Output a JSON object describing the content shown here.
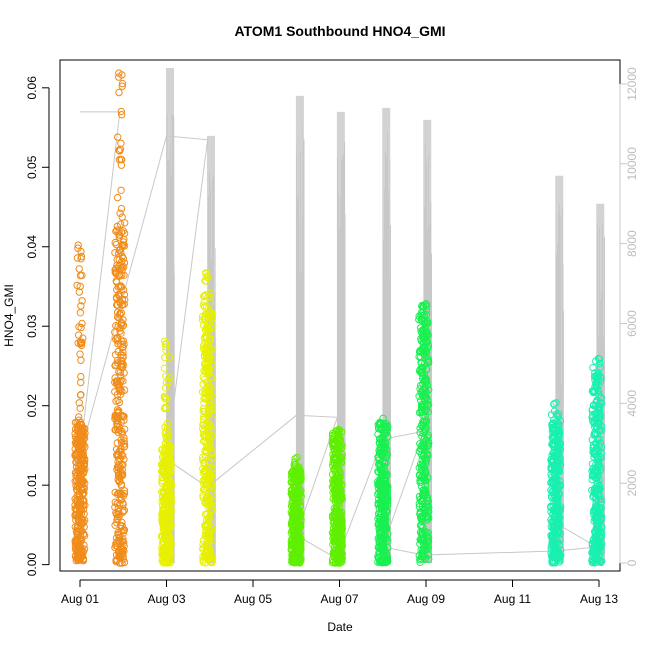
{
  "chart_data": {
    "type": "scatter",
    "title": "ATOM1 Southbound HNO4_GMI",
    "xlabel": "Date",
    "ylabel": "HNO4_GMI",
    "x_tick_labels": [
      "Aug 01",
      "Aug 03",
      "Aug 05",
      "Aug 07",
      "Aug 09",
      "Aug 11",
      "Aug 13"
    ],
    "x_range_days": [
      0.0,
      12.7
    ],
    "ylim": [
      -0.0008,
      0.0635
    ],
    "y_ticks": [
      0.0,
      0.01,
      0.02,
      0.03,
      0.04,
      0.05,
      0.06
    ],
    "y_tick_labels": [
      "0.00",
      "0.01",
      "0.02",
      "0.03",
      "0.04",
      "0.05",
      "0.06"
    ],
    "y2_ticks": [
      0,
      2000,
      4000,
      6000,
      8000,
      10000,
      12000
    ],
    "y2_tick_labels": [
      "0",
      "2000",
      "4000",
      "6000",
      "8000",
      "10000",
      "12000"
    ],
    "y2lim": [
      -200,
      12600
    ],
    "y2_color": "#bdbdbd",
    "grid": false,
    "legend": "none",
    "series": [
      {
        "color": "#f08c1a",
        "clusters": [
          {
            "x": 0.0,
            "ymin": 0.0005,
            "ymax": 0.041,
            "dense": [
              0.0005,
              0.018
            ]
          },
          {
            "x": 0.92,
            "ymin": 0.0002,
            "ymax": 0.063,
            "dense": [
              0.0002,
              0.043
            ]
          }
        ]
      },
      {
        "color": "#e6f000",
        "clusters": [
          {
            "x": 2.0,
            "ymin": 0.0002,
            "ymax": 0.0285,
            "dense": [
              0.0002,
              0.015
            ]
          },
          {
            "x": 2.95,
            "ymin": 0.0002,
            "ymax": 0.0375,
            "dense": [
              0.0002,
              0.034
            ]
          }
        ]
      },
      {
        "color": "#5ff000",
        "clusters": [
          {
            "x": 5.0,
            "ymin": 0.0002,
            "ymax": 0.0135,
            "dense": [
              0.0002,
              0.012
            ]
          },
          {
            "x": 5.95,
            "ymin": 0.0002,
            "ymax": 0.018,
            "dense": [
              0.0002,
              0.017
            ]
          }
        ]
      },
      {
        "color": "#19f050",
        "clusters": [
          {
            "x": 7.0,
            "ymin": 0.0002,
            "ymax": 0.0185,
            "dense": [
              0.0002,
              0.018
            ]
          },
          {
            "x": 7.95,
            "ymin": 0.0002,
            "ymax": 0.033,
            "dense": [
              0.0002,
              0.033
            ]
          }
        ]
      },
      {
        "color": "#19f0b0",
        "clusters": [
          {
            "x": 11.0,
            "ymin": 0.0002,
            "ymax": 0.0205,
            "dense": [
              0.0002,
              0.019
            ]
          },
          {
            "x": 11.95,
            "ymin": 0.0002,
            "ymax": 0.026,
            "dense": [
              0.0002,
              0.025
            ]
          }
        ]
      }
    ],
    "secondary_series": {
      "color": "#c8c8c8",
      "type": "line",
      "spikes": [
        {
          "x": 2.0,
          "max": 12400
        },
        {
          "x": 2.95,
          "max": 10700
        },
        {
          "x": 5.0,
          "max": 11700
        },
        {
          "x": 5.95,
          "max": 11300
        },
        {
          "x": 7.0,
          "max": 11400
        },
        {
          "x": 7.95,
          "max": 11100
        },
        {
          "x": 11.0,
          "max": 9700
        },
        {
          "x": 11.95,
          "max": 9000
        }
      ],
      "path": [
        [
          0.0,
          11300
        ],
        [
          0.92,
          11300
        ],
        [
          0.0,
          2700
        ],
        [
          2.0,
          10700
        ],
        [
          2.95,
          10600
        ],
        [
          2.0,
          2600
        ],
        [
          2.95,
          1900
        ],
        [
          5.0,
          3700
        ],
        [
          5.95,
          3650
        ],
        [
          5.0,
          700
        ],
        [
          5.95,
          100
        ],
        [
          7.0,
          3100
        ],
        [
          7.95,
          3300
        ],
        [
          7.0,
          400
        ],
        [
          7.95,
          200
        ],
        [
          11.0,
          300
        ],
        [
          11.95,
          400
        ],
        [
          11.0,
          1000
        ]
      ]
    }
  }
}
